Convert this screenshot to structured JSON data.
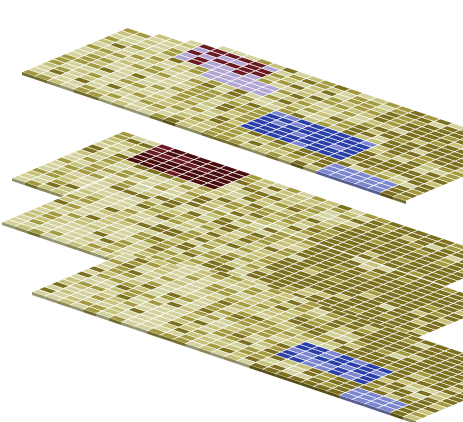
{
  "visualization": {
    "kind": "stacked isometric sheets of colored tiles",
    "layer_count": 4,
    "palette": {
      "olive": "#a39a3f",
      "olive_light": "#c6c27a",
      "olive_pale": "#d4d3a0",
      "olive_dark": "#7c6f1d",
      "brown_deep": "#4a0d0d",
      "maroon": "#6a1a23",
      "blue": "#2a3fa8",
      "blue_light": "#7b86cf",
      "lavender": "#b1a5d2",
      "tile_border": "#ffffff"
    },
    "layers": [
      {
        "name": "top-sheet",
        "accent_primary": "maroon",
        "accent_secondary": "blue"
      },
      {
        "name": "upper-middle-sheet",
        "accent_primary": "brown_deep",
        "accent_secondary": null
      },
      {
        "name": "lower-middle-sheet",
        "accent_primary": null,
        "accent_secondary": null
      },
      {
        "name": "bottom-sheet",
        "accent_primary": null,
        "accent_secondary": "blue"
      }
    ]
  }
}
